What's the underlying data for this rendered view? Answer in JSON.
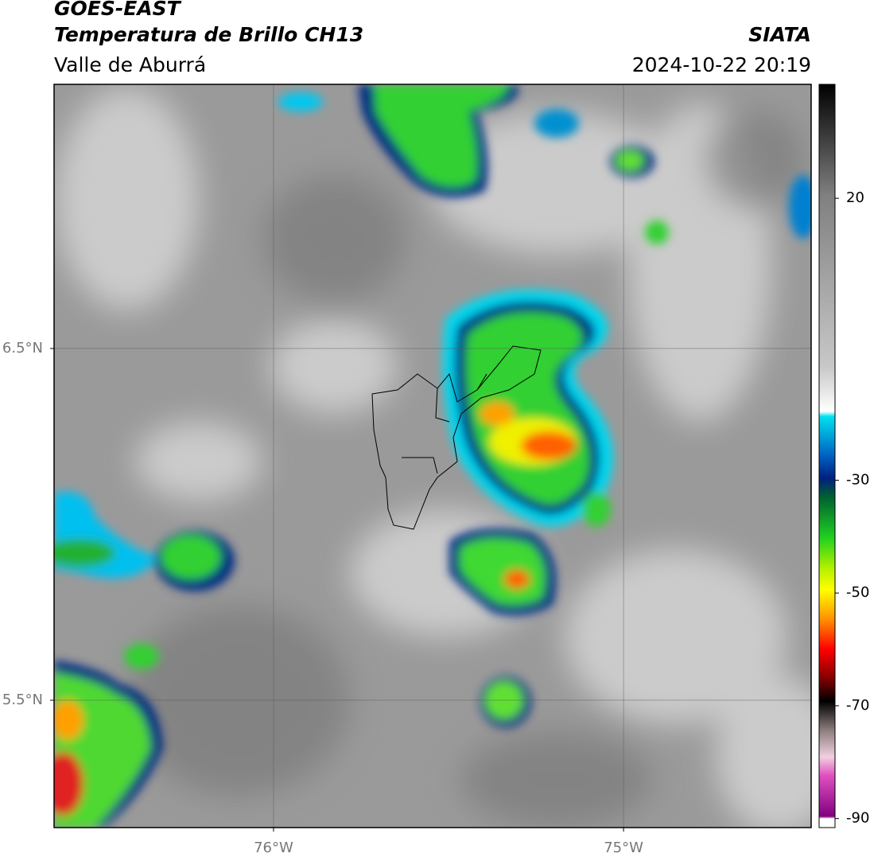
{
  "header": {
    "source": "GOES-EAST",
    "product": "Temperatura de Brillo CH13",
    "region": "Valle de Aburrá",
    "agency": "SIATA",
    "timestamp": "2024-10-22 20:19"
  },
  "map": {
    "xlim": [
      -76.627,
      -74.464
    ],
    "ylim": [
      5.138,
      7.251
    ],
    "xticks": [
      {
        "value": -76,
        "label": "76°W"
      },
      {
        "value": -75,
        "label": "75°W"
      }
    ],
    "yticks": [
      {
        "value": 6.5,
        "label": "6.5°N"
      },
      {
        "value": 5.5,
        "label": "5.5°N"
      }
    ],
    "grid": true
  },
  "colorbar": {
    "lim": [
      -91.6,
      40.2
    ],
    "ticks": [
      20,
      -30,
      -50,
      -70,
      -90
    ]
  }
}
